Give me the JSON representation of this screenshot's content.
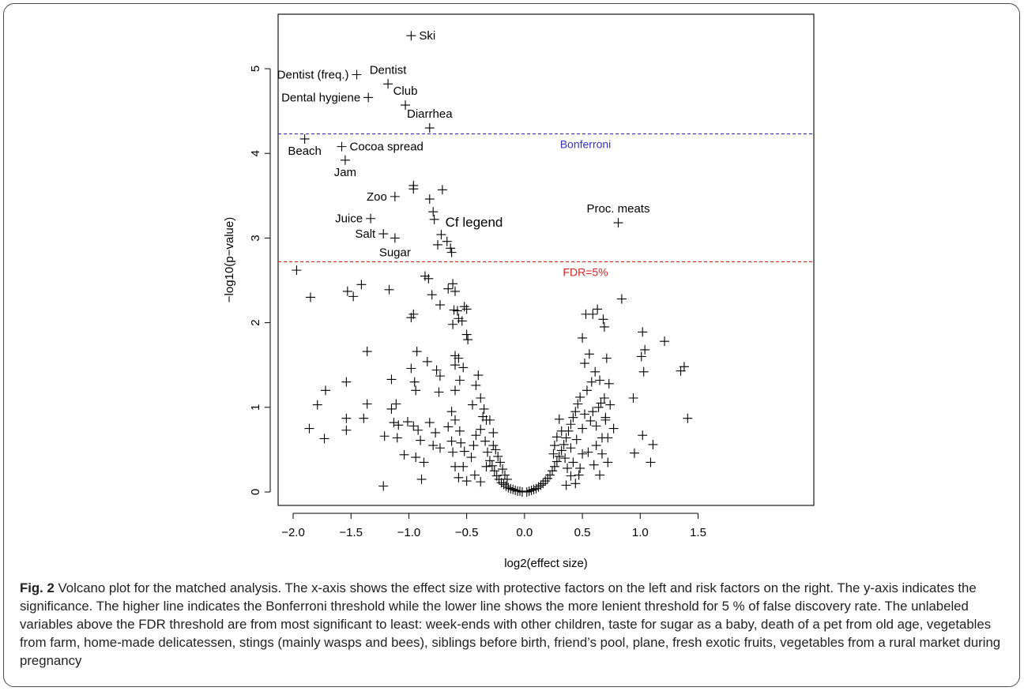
{
  "figure": {
    "caption_label": "Fig. 2",
    "caption_text": " Volcano plot for the matched analysis. The x-axis shows the effect size with protective factors on the left and risk factors on the right. The y-axis indicates the significance. The higher line indicates the Bonferroni threshold while the lower line shows the more lenient threshold for 5 % of false discovery rate. The unlabeled variables above the FDR threshold are from most significant to least: week-ends with other children, taste for sugar as a baby, death of a pet from old age, vegetables from farm, home-made delicatessen, stings (mainly wasps and bees), siblings before birth, friend’s pool, plane, fresh exotic fruits, vegetables from a rural market during pregnancy"
  },
  "chart_data": {
    "type": "scatter",
    "xlabel": "log2(effect size)",
    "ylabel": "−log10(p−value)",
    "xlim": [
      -2.1,
      1.6
    ],
    "ylim": [
      -0.1,
      5.6
    ],
    "x_ticks": [
      "−2.0",
      "−1.5",
      "−1.0",
      "−0.5",
      "0.0",
      "0.5",
      "1.0",
      "1.5"
    ],
    "y_ticks": [
      "0",
      "1",
      "2",
      "3",
      "4",
      "5"
    ],
    "grid": false,
    "marker": "+",
    "thresholds": [
      {
        "name": "Bonferroni",
        "y": 4.23,
        "color": "#3333cc"
      },
      {
        "name": "FDR=5%",
        "y": 2.72,
        "color": "#dd2222"
      }
    ],
    "annotation": "Cf legend",
    "labeled_points": [
      {
        "label": "Ski",
        "x": -0.98,
        "y": 5.39
      },
      {
        "label": "Dentist (freq.)",
        "x": -1.45,
        "y": 4.93
      },
      {
        "label": "Dentist",
        "x": -1.18,
        "y": 4.82
      },
      {
        "label": "Dental hygiene",
        "x": -1.35,
        "y": 4.66
      },
      {
        "label": "Club",
        "x": -1.03,
        "y": 4.57
      },
      {
        "label": "Diarrhea",
        "x": -0.82,
        "y": 4.3
      },
      {
        "label": "Beach",
        "x": -1.9,
        "y": 4.17
      },
      {
        "label": "Cocoa spread",
        "x": -1.58,
        "y": 4.08
      },
      {
        "label": "Jam",
        "x": -1.55,
        "y": 3.92
      },
      {
        "label": "Zoo",
        "x": -1.12,
        "y": 3.49
      },
      {
        "label": "Juice",
        "x": -1.33,
        "y": 3.23
      },
      {
        "label": "Salt",
        "x": -1.22,
        "y": 3.05
      },
      {
        "label": "Sugar",
        "x": -1.12,
        "y": 3.0
      },
      {
        "label": "Proc. meats",
        "x": 0.81,
        "y": 3.18
      }
    ],
    "unlabeled_above_fdr": [
      [
        -0.96,
        3.62
      ],
      [
        -0.96,
        3.58
      ],
      [
        -0.71,
        3.57
      ],
      [
        -0.82,
        3.46
      ],
      [
        -0.79,
        3.31
      ],
      [
        -0.78,
        3.22
      ],
      [
        -0.72,
        3.04
      ],
      [
        -0.67,
        2.96
      ],
      [
        -0.75,
        2.92
      ],
      [
        -0.64,
        2.88
      ],
      [
        -0.63,
        2.83
      ]
    ],
    "points": [
      [
        -1.97,
        2.62
      ],
      [
        -1.85,
        2.3
      ],
      [
        -1.53,
        2.37
      ],
      [
        -1.48,
        2.31
      ],
      [
        -1.41,
        2.45
      ],
      [
        -1.17,
        2.39
      ],
      [
        -0.86,
        2.55
      ],
      [
        -0.83,
        2.52
      ],
      [
        -0.66,
        2.4
      ],
      [
        -0.62,
        2.46
      ],
      [
        -0.6,
        2.37
      ],
      [
        -0.73,
        2.21
      ],
      [
        -0.8,
        2.33
      ],
      [
        -0.61,
        2.15
      ],
      [
        -0.58,
        2.14
      ],
      [
        -0.52,
        2.19
      ],
      [
        -0.5,
        2.16
      ],
      [
        -0.57,
        2.05
      ],
      [
        -0.54,
        2.02
      ],
      [
        -0.62,
        1.98
      ],
      [
        -0.5,
        1.86
      ],
      [
        -0.49,
        1.8
      ],
      [
        -0.98,
        2.06
      ],
      [
        -0.96,
        2.1
      ],
      [
        -1.36,
        1.66
      ],
      [
        -0.93,
        1.66
      ],
      [
        -0.84,
        1.54
      ],
      [
        -0.98,
        1.46
      ],
      [
        -0.95,
        1.3
      ],
      [
        -0.94,
        1.2
      ],
      [
        -0.76,
        1.44
      ],
      [
        -0.73,
        1.37
      ],
      [
        -0.6,
        1.61
      ],
      [
        -0.6,
        1.5
      ],
      [
        -0.57,
        1.58
      ],
      [
        -0.53,
        1.47
      ],
      [
        -0.56,
        1.32
      ],
      [
        -0.6,
        1.2
      ],
      [
        -0.74,
        1.18
      ],
      [
        -1.15,
        1.33
      ],
      [
        -1.54,
        1.3
      ],
      [
        -1.72,
        1.2
      ],
      [
        -1.36,
        1.04
      ],
      [
        -1.11,
        1.04
      ],
      [
        -1.15,
        0.98
      ],
      [
        -1.13,
        0.82
      ],
      [
        -1.01,
        0.83
      ],
      [
        -1.09,
        0.79
      ],
      [
        -0.96,
        0.78
      ],
      [
        -0.92,
        0.73
      ],
      [
        -0.82,
        0.82
      ],
      [
        -0.77,
        0.7
      ],
      [
        -0.79,
        0.55
      ],
      [
        -0.73,
        0.52
      ],
      [
        -0.9,
        0.61
      ],
      [
        -0.94,
        0.41
      ],
      [
        -1.04,
        0.44
      ],
      [
        -1.1,
        0.64
      ],
      [
        -1.21,
        0.66
      ],
      [
        -1.39,
        0.87
      ],
      [
        -1.54,
        0.87
      ],
      [
        -1.54,
        0.73
      ],
      [
        -1.73,
        0.63
      ],
      [
        -1.79,
        1.03
      ],
      [
        -1.86,
        0.75
      ],
      [
        -0.87,
        0.35
      ],
      [
        -0.89,
        0.15
      ],
      [
        -1.22,
        0.07
      ],
      [
        -0.56,
        0.72
      ],
      [
        -0.6,
        0.85
      ],
      [
        -0.63,
        0.95
      ],
      [
        -0.66,
        0.77
      ],
      [
        -0.63,
        0.6
      ],
      [
        -0.62,
        0.47
      ],
      [
        -0.55,
        0.58
      ],
      [
        -0.52,
        0.48
      ],
      [
        -0.53,
        0.3
      ],
      [
        -0.6,
        0.3
      ],
      [
        -0.57,
        0.17
      ],
      [
        -0.5,
        0.13
      ],
      [
        -0.46,
        0.41
      ],
      [
        -0.44,
        0.55
      ],
      [
        -0.42,
        0.67
      ],
      [
        -0.38,
        0.74
      ],
      [
        -0.36,
        0.89
      ],
      [
        -0.33,
        0.85
      ],
      [
        -0.34,
        0.6
      ],
      [
        -0.32,
        0.47
      ],
      [
        -0.3,
        0.37
      ],
      [
        -0.28,
        0.31
      ],
      [
        -0.26,
        0.25
      ],
      [
        -0.24,
        0.19
      ],
      [
        -0.22,
        0.15
      ],
      [
        -0.2,
        0.11
      ],
      [
        -0.18,
        0.09
      ],
      [
        -0.16,
        0.07
      ],
      [
        -0.14,
        0.05
      ],
      [
        -0.12,
        0.04
      ],
      [
        -0.1,
        0.03
      ],
      [
        -0.08,
        0.02
      ],
      [
        -0.06,
        0.01
      ],
      [
        -0.04,
        0.01
      ],
      [
        -0.02,
        0.0
      ],
      [
        -0.45,
        1.03
      ],
      [
        -0.42,
        1.26
      ],
      [
        -0.4,
        1.38
      ],
      [
        -0.38,
        1.11
      ],
      [
        -0.35,
        0.98
      ],
      [
        -0.3,
        0.85
      ],
      [
        -0.27,
        0.7
      ],
      [
        -0.27,
        0.55
      ],
      [
        -0.25,
        0.5
      ],
      [
        -0.23,
        0.42
      ],
      [
        -0.21,
        0.35
      ],
      [
        -0.19,
        0.27
      ],
      [
        -0.17,
        0.2
      ],
      [
        -0.15,
        0.15
      ],
      [
        -0.43,
        0.2
      ],
      [
        -0.38,
        0.12
      ],
      [
        -0.33,
        0.3
      ],
      [
        0.02,
        0.0
      ],
      [
        0.04,
        0.01
      ],
      [
        0.06,
        0.02
      ],
      [
        0.08,
        0.03
      ],
      [
        0.1,
        0.04
      ],
      [
        0.12,
        0.06
      ],
      [
        0.14,
        0.08
      ],
      [
        0.16,
        0.1
      ],
      [
        0.18,
        0.13
      ],
      [
        0.2,
        0.16
      ],
      [
        0.22,
        0.2
      ],
      [
        0.24,
        0.25
      ],
      [
        0.26,
        0.3
      ],
      [
        0.28,
        0.36
      ],
      [
        0.3,
        0.42
      ],
      [
        0.32,
        0.49
      ],
      [
        0.34,
        0.56
      ],
      [
        0.36,
        0.64
      ],
      [
        0.38,
        0.72
      ],
      [
        0.4,
        0.8
      ],
      [
        0.42,
        0.88
      ],
      [
        0.44,
        0.95
      ],
      [
        0.46,
        1.04
      ],
      [
        0.48,
        1.12
      ],
      [
        0.3,
        0.86
      ],
      [
        0.32,
        0.72
      ],
      [
        0.28,
        0.65
      ],
      [
        0.26,
        0.55
      ],
      [
        0.25,
        0.45
      ],
      [
        0.35,
        0.4
      ],
      [
        0.37,
        0.28
      ],
      [
        0.4,
        0.52
      ],
      [
        0.42,
        0.35
      ],
      [
        0.45,
        0.62
      ],
      [
        0.47,
        0.2
      ],
      [
        0.5,
        0.75
      ],
      [
        0.52,
        0.92
      ],
      [
        0.54,
        1.2
      ],
      [
        0.5,
        0.45
      ],
      [
        0.48,
        0.28
      ],
      [
        0.55,
        0.47
      ],
      [
        0.57,
        0.84
      ],
      [
        0.6,
        0.32
      ],
      [
        0.62,
        0.55
      ],
      [
        0.65,
        0.2
      ],
      [
        0.66,
        1.05
      ],
      [
        0.58,
        1.3
      ],
      [
        0.52,
        1.52
      ],
      [
        0.5,
        1.82
      ],
      [
        0.53,
        2.1
      ],
      [
        0.59,
        2.1
      ],
      [
        0.63,
        2.16
      ],
      [
        0.68,
        2.04
      ],
      [
        0.69,
        1.95
      ],
      [
        0.71,
        1.58
      ],
      [
        0.61,
        1.42
      ],
      [
        0.56,
        1.63
      ],
      [
        0.65,
        1.32
      ],
      [
        0.73,
        1.28
      ],
      [
        0.69,
        1.11
      ],
      [
        0.74,
        1.03
      ],
      [
        0.7,
        0.85
      ],
      [
        0.72,
        0.64
      ],
      [
        0.77,
        0.75
      ],
      [
        0.67,
        0.45
      ],
      [
        0.72,
        0.35
      ],
      [
        0.84,
        2.28
      ],
      [
        1.02,
        1.89
      ],
      [
        1.21,
        1.78
      ],
      [
        1.04,
        1.68
      ],
      [
        1.01,
        1.6
      ],
      [
        1.03,
        1.42
      ],
      [
        0.94,
        1.11
      ],
      [
        1.02,
        0.67
      ],
      [
        1.11,
        0.56
      ],
      [
        1.09,
        0.35
      ],
      [
        0.95,
        0.46
      ],
      [
        1.35,
        1.43
      ],
      [
        1.38,
        1.48
      ],
      [
        1.41,
        0.87
      ],
      [
        0.59,
        0.95
      ],
      [
        0.64,
        1.0
      ],
      [
        0.7,
        0.88
      ],
      [
        0.67,
        0.64
      ],
      [
        0.62,
        0.78
      ],
      [
        0.44,
        0.1
      ],
      [
        0.4,
        0.19
      ],
      [
        0.36,
        0.08
      ]
    ]
  }
}
